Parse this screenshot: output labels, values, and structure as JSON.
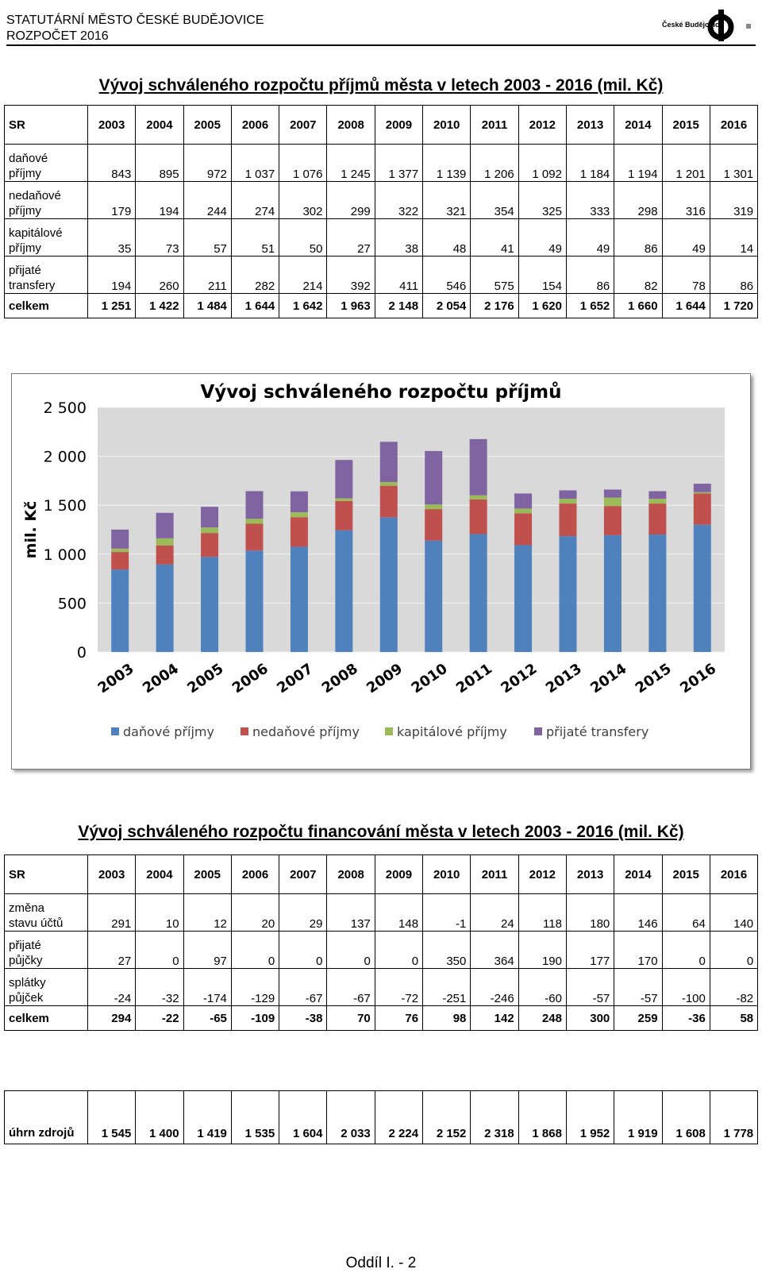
{
  "header": {
    "line1": "STATUTÁRNÍ MĚSTO ČESKÉ BUDĚJOVICE",
    "line2": "ROZPOČET 2016",
    "logo_text": "České Budějovice"
  },
  "table1": {
    "title": "Vývoj schváleného rozpočtu příjmů města v letech 2003 - 2016 (mil. Kč)",
    "header_label": "SR",
    "years": [
      "2003",
      "2004",
      "2005",
      "2006",
      "2007",
      "2008",
      "2009",
      "2010",
      "2011",
      "2012",
      "2013",
      "2014",
      "2015",
      "2016"
    ],
    "rows": [
      {
        "label1": "daňové",
        "label2": "příjmy",
        "values": [
          "843",
          "895",
          "972",
          "1 037",
          "1 076",
          "1 245",
          "1 377",
          "1 139",
          "1 206",
          "1 092",
          "1 184",
          "1 194",
          "1 201",
          "1 301"
        ]
      },
      {
        "label1": "nedaňové",
        "label2": "příjmy",
        "values": [
          "179",
          "194",
          "244",
          "274",
          "302",
          "299",
          "322",
          "321",
          "354",
          "325",
          "333",
          "298",
          "316",
          "319"
        ]
      },
      {
        "label1": "kapitálové",
        "label2": "příjmy",
        "values": [
          "35",
          "73",
          "57",
          "51",
          "50",
          "27",
          "38",
          "48",
          "41",
          "49",
          "49",
          "86",
          "49",
          "14"
        ]
      },
      {
        "label1": "přijaté",
        "label2": "transfery",
        "values": [
          "194",
          "260",
          "211",
          "282",
          "214",
          "392",
          "411",
          "546",
          "575",
          "154",
          "86",
          "82",
          "78",
          "86"
        ]
      }
    ],
    "total": {
      "label": "celkem",
      "values": [
        "1 251",
        "1 422",
        "1 484",
        "1 644",
        "1 642",
        "1 963",
        "2 148",
        "2 054",
        "2 176",
        "1 620",
        "1 652",
        "1 660",
        "1 644",
        "1 720"
      ]
    }
  },
  "chart_data": {
    "type": "bar",
    "stacked": true,
    "title": "Vývoj schváleného rozpočtu příjmů",
    "ylabel": "mil. Kč",
    "xlabel": "",
    "ylim": [
      0,
      2500
    ],
    "yticks": [
      0,
      500,
      1000,
      1500,
      2000,
      2500
    ],
    "ytick_labels": [
      "0",
      "500",
      "1 000",
      "1 500",
      "2 000",
      "2 500"
    ],
    "grid": true,
    "legend": "bottom",
    "categories": [
      "2003",
      "2004",
      "2005",
      "2006",
      "2007",
      "2008",
      "2009",
      "2010",
      "2011",
      "2012",
      "2013",
      "2014",
      "2015",
      "2016"
    ],
    "series": [
      {
        "name": "daňové příjmy",
        "color": "#4F81BD",
        "values": [
          843,
          895,
          972,
          1037,
          1076,
          1245,
          1377,
          1139,
          1206,
          1092,
          1184,
          1194,
          1201,
          1301
        ]
      },
      {
        "name": "nedaňové příjmy",
        "color": "#C0504D",
        "values": [
          179,
          194,
          244,
          274,
          302,
          299,
          322,
          321,
          354,
          325,
          333,
          298,
          316,
          319
        ]
      },
      {
        "name": "kapitálové příjmy",
        "color": "#9BBB59",
        "values": [
          35,
          73,
          57,
          51,
          50,
          27,
          38,
          48,
          41,
          49,
          49,
          86,
          49,
          14
        ]
      },
      {
        "name": "přijaté transfery",
        "color": "#8064A2",
        "values": [
          194,
          260,
          211,
          282,
          214,
          392,
          411,
          546,
          575,
          154,
          86,
          82,
          78,
          86
        ]
      }
    ]
  },
  "table2": {
    "title": "Vývoj schváleného rozpočtu financování města v letech 2003 - 2016 (mil. Kč)",
    "header_label": "SR",
    "years": [
      "2003",
      "2004",
      "2005",
      "2006",
      "2007",
      "2008",
      "2009",
      "2010",
      "2011",
      "2012",
      "2013",
      "2014",
      "2015",
      "2016"
    ],
    "rows": [
      {
        "label1": "změna",
        "label2": "stavu účtů",
        "values": [
          "291",
          "10",
          "12",
          "20",
          "29",
          "137",
          "148",
          "-1",
          "24",
          "118",
          "180",
          "146",
          "64",
          "140"
        ]
      },
      {
        "label1": "přijaté",
        "label2": "půjčky",
        "values": [
          "27",
          "0",
          "97",
          "0",
          "0",
          "0",
          "0",
          "350",
          "364",
          "190",
          "177",
          "170",
          "0",
          "0"
        ]
      },
      {
        "label1": "splátky",
        "label2": "půjček",
        "values": [
          "-24",
          "-32",
          "-174",
          "-129",
          "-67",
          "-67",
          "-72",
          "-251",
          "-246",
          "-60",
          "-57",
          "-57",
          "-100",
          "-82"
        ]
      }
    ],
    "total": {
      "label": "celkem",
      "values": [
        "294",
        "-22",
        "-65",
        "-109",
        "-38",
        "70",
        "76",
        "98",
        "142",
        "248",
        "300",
        "259",
        "-36",
        "58"
      ]
    }
  },
  "table3": {
    "label": "úhrn zdrojů",
    "values": [
      "1 545",
      "1 400",
      "1 419",
      "1 535",
      "1 604",
      "2 033",
      "2 224",
      "2 152",
      "2 318",
      "1 868",
      "1 952",
      "1 919",
      "1 608",
      "1 778"
    ]
  },
  "footer": "Oddíl I. - 2"
}
